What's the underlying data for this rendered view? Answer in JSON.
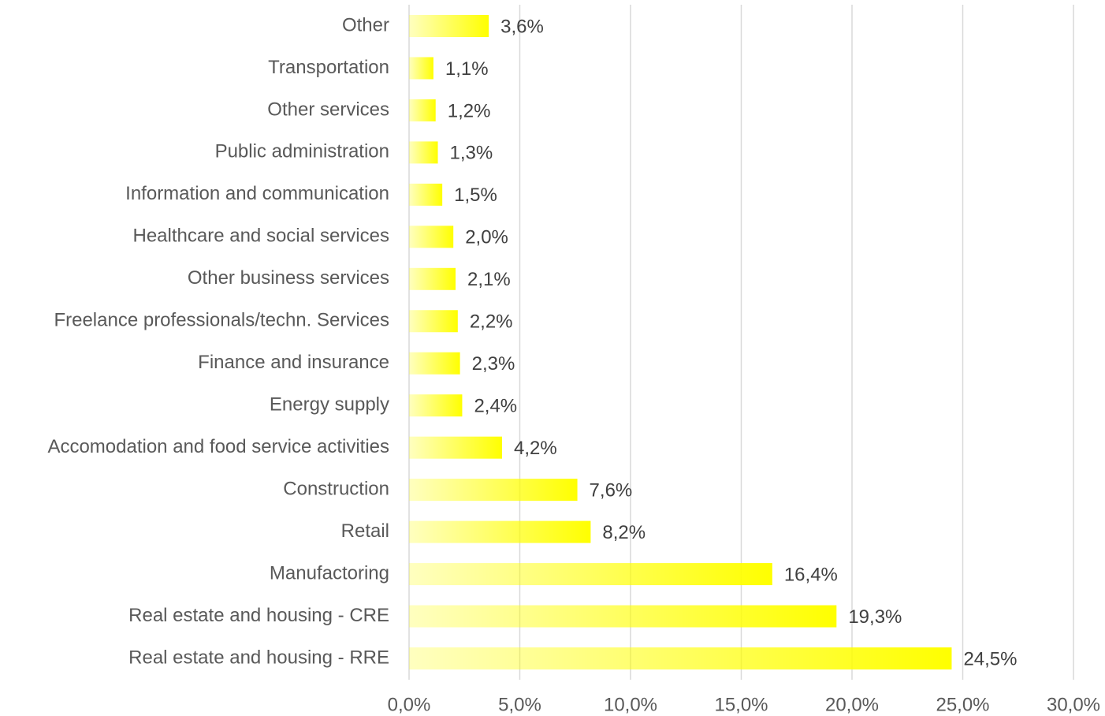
{
  "chart_data": {
    "type": "barh",
    "categories": [
      "Other",
      "Transportation",
      "Other services",
      "Public administration",
      "Information and communication",
      "Healthcare and social services",
      "Other business services",
      "Freelance professionals/techn. Services",
      "Finance and insurance",
      "Energy supply",
      "Accomodation and food service activities",
      "Construction",
      "Retail",
      "Manufactoring",
      "Real estate and housing - CRE",
      "Real estate and housing - RRE"
    ],
    "values": [
      3.6,
      1.1,
      1.2,
      1.3,
      1.5,
      2.0,
      2.1,
      2.2,
      2.3,
      2.4,
      4.2,
      7.6,
      8.2,
      16.4,
      19.3,
      24.5
    ],
    "value_labels": [
      "3,6%",
      "1,1%",
      "1,2%",
      "1,3%",
      "1,5%",
      "2,0%",
      "2,1%",
      "2,2%",
      "2,3%",
      "2,4%",
      "4,2%",
      "7,6%",
      "8,2%",
      "16,4%",
      "19,3%",
      "24,5%"
    ],
    "color": "#ffff00",
    "xlim": [
      0,
      30
    ],
    "xticks": [
      {
        "value": 0,
        "label": "0,0%"
      },
      {
        "value": 5,
        "label": "5,0%"
      },
      {
        "value": 10,
        "label": "10,0%"
      },
      {
        "value": 15,
        "label": "15,0%"
      },
      {
        "value": 20,
        "label": "20,0%"
      },
      {
        "value": 25,
        "label": "25,0%"
      },
      {
        "value": 30,
        "label": "30,0%"
      }
    ],
    "grid": true
  }
}
